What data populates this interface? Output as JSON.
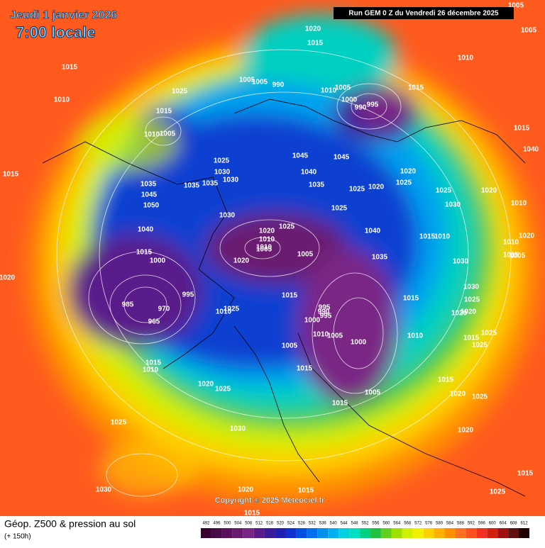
{
  "header": {
    "date": "Jeudi 1 janvier 2026",
    "time": "7:00 locale",
    "run": "Run GEM 0 Z du Vendredi 26 décembre 2025"
  },
  "footer": {
    "title": "Géop. Z500 & pression au sol",
    "lead": "(+ 150h)",
    "copyright": "Copyright © 2025 Meteociel.fr"
  },
  "colorbar": {
    "ticks": [
      492,
      496,
      500,
      504,
      508,
      512,
      516,
      520,
      524,
      528,
      532,
      536,
      540,
      544,
      548,
      552,
      556,
      560,
      564,
      568,
      572,
      576,
      580,
      584,
      588,
      592,
      596,
      600,
      604,
      608,
      612
    ],
    "colors": [
      "#3a0030",
      "#4a0a4a",
      "#5a0f5f",
      "#6a1a70",
      "#7a2585",
      "#5a1a8a",
      "#3a1a9a",
      "#2020b0",
      "#1030d0",
      "#0050e0",
      "#0070f0",
      "#0090f0",
      "#00b0f0",
      "#00d0e0",
      "#00e0c0",
      "#00d080",
      "#20c040",
      "#60d020",
      "#a0e000",
      "#d0f000",
      "#f0f000",
      "#ffd000",
      "#ffb000",
      "#ff9000",
      "#ff7020",
      "#ff5020",
      "#f03020",
      "#d02010",
      "#a01010",
      "#601010",
      "#200000"
    ]
  },
  "isobar_labels": [
    "1005",
    "1020",
    "1005",
    "1015",
    "1010",
    "1015",
    "1010",
    "1025",
    "1005",
    "1005",
    "990",
    "1010",
    "1005",
    "1000",
    "995",
    "990",
    "1015",
    "1015",
    "1005",
    "1010",
    "1015",
    "1015",
    "1025",
    "1030",
    "1030",
    "1035",
    "1035",
    "1045",
    "1045",
    "1035",
    "1040",
    "1050",
    "1045",
    "1035",
    "1025",
    "1020",
    "1020",
    "1025",
    "1020",
    "1025",
    "1030",
    "1010",
    "1040",
    "1025",
    "1030",
    "1025",
    "1040",
    "1040",
    "1010",
    "1010",
    "1015",
    "1010",
    "1020",
    "1010",
    "1005",
    "1005",
    "1020",
    "1030",
    "1035",
    "1000",
    "1015",
    "985",
    "995",
    "970",
    "965",
    "995",
    "1025",
    "1010",
    "1030",
    "1020",
    "1025",
    "1015",
    "1015",
    "1020",
    "995",
    "990",
    "1010",
    "1005",
    "1000",
    "1000",
    "1005",
    "1025",
    "1015",
    "1015",
    "1010",
    "1005",
    "1015",
    "1020",
    "1025",
    "1030",
    "1025",
    "1020",
    "1015",
    "1020",
    "1025",
    "1015",
    "1025",
    "1030",
    "1020",
    "1015",
    "1015",
    "1020",
    "1015",
    "1005",
    "1015",
    "1020",
    "1025",
    "1010"
  ]
}
